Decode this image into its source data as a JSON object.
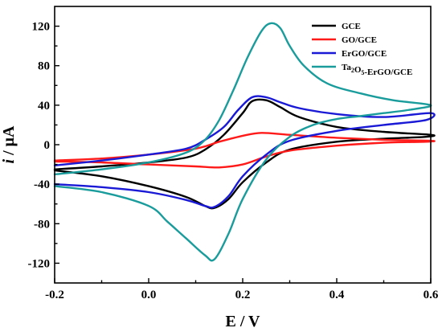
{
  "chart_data": {
    "type": "line",
    "xlabel": "E / V",
    "ylabel_italic": "i",
    "ylabel_rest": " / μA",
    "xlim": [
      -0.2,
      0.6
    ],
    "ylim": [
      -140,
      140
    ],
    "x_ticks": [
      -0.2,
      0.0,
      0.2,
      0.4,
      0.6
    ],
    "x_tick_labels": [
      "-0.2",
      "0.0",
      "0.2",
      "0.4",
      "0.6"
    ],
    "y_ticks": [
      -120,
      -80,
      -40,
      0,
      40,
      80,
      120
    ],
    "y_tick_labels": [
      "-120",
      "-80",
      "-40",
      "0",
      "40",
      "80",
      "120"
    ],
    "grid": false,
    "legend_position": "top-right",
    "series": [
      {
        "name": "GCE",
        "color": "#000000",
        "points": [
          [
            -0.2,
            -25
          ],
          [
            -0.1,
            -22
          ],
          [
            0.0,
            -18
          ],
          [
            0.08,
            -13
          ],
          [
            0.12,
            -5
          ],
          [
            0.16,
            10
          ],
          [
            0.2,
            32
          ],
          [
            0.22,
            44
          ],
          [
            0.25,
            45
          ],
          [
            0.28,
            38
          ],
          [
            0.32,
            28
          ],
          [
            0.4,
            18
          ],
          [
            0.5,
            13
          ],
          [
            0.6,
            10
          ],
          [
            0.59,
            8
          ],
          [
            0.5,
            6
          ],
          [
            0.4,
            3
          ],
          [
            0.3,
            -5
          ],
          [
            0.25,
            -18
          ],
          [
            0.2,
            -38
          ],
          [
            0.17,
            -55
          ],
          [
            0.14,
            -64
          ],
          [
            0.12,
            -62
          ],
          [
            0.08,
            -53
          ],
          [
            0.0,
            -42
          ],
          [
            -0.1,
            -32
          ],
          [
            -0.2,
            -26
          ]
        ]
      },
      {
        "name": "GO/GCE",
        "color": "#ff1a1a",
        "points": [
          [
            -0.2,
            -16
          ],
          [
            -0.1,
            -14
          ],
          [
            0.0,
            -10
          ],
          [
            0.1,
            -4
          ],
          [
            0.15,
            3
          ],
          [
            0.2,
            9
          ],
          [
            0.24,
            12
          ],
          [
            0.3,
            10
          ],
          [
            0.4,
            7
          ],
          [
            0.5,
            5
          ],
          [
            0.6,
            4
          ],
          [
            0.59,
            3
          ],
          [
            0.5,
            2
          ],
          [
            0.4,
            -1
          ],
          [
            0.3,
            -6
          ],
          [
            0.25,
            -12
          ],
          [
            0.2,
            -20
          ],
          [
            0.15,
            -23
          ],
          [
            0.1,
            -22
          ],
          [
            0.0,
            -20
          ],
          [
            -0.1,
            -18
          ],
          [
            -0.2,
            -17
          ]
        ]
      },
      {
        "name": "ErGO/GCE",
        "color": "#1a1ad6",
        "points": [
          [
            -0.2,
            -21
          ],
          [
            -0.1,
            -16
          ],
          [
            0.0,
            -10
          ],
          [
            0.08,
            -4
          ],
          [
            0.12,
            5
          ],
          [
            0.16,
            18
          ],
          [
            0.19,
            35
          ],
          [
            0.22,
            48
          ],
          [
            0.25,
            48
          ],
          [
            0.28,
            43
          ],
          [
            0.32,
            37
          ],
          [
            0.4,
            31
          ],
          [
            0.5,
            28
          ],
          [
            0.6,
            32
          ],
          [
            0.59,
            25
          ],
          [
            0.5,
            20
          ],
          [
            0.4,
            14
          ],
          [
            0.3,
            4
          ],
          [
            0.25,
            -10
          ],
          [
            0.2,
            -32
          ],
          [
            0.17,
            -52
          ],
          [
            0.14,
            -63
          ],
          [
            0.12,
            -62
          ],
          [
            0.08,
            -56
          ],
          [
            0.0,
            -48
          ],
          [
            -0.1,
            -43
          ],
          [
            -0.2,
            -40
          ]
        ]
      },
      {
        "name": "Ta2O5-ErGO/GCE",
        "color": "#1a9c9c",
        "points": [
          [
            -0.2,
            -30
          ],
          [
            -0.1,
            -25
          ],
          [
            0.0,
            -18
          ],
          [
            0.08,
            -8
          ],
          [
            0.12,
            5
          ],
          [
            0.15,
            25
          ],
          [
            0.18,
            55
          ],
          [
            0.21,
            88
          ],
          [
            0.24,
            115
          ],
          [
            0.26,
            123
          ],
          [
            0.28,
            118
          ],
          [
            0.3,
            100
          ],
          [
            0.33,
            80
          ],
          [
            0.38,
            62
          ],
          [
            0.45,
            52
          ],
          [
            0.52,
            45
          ],
          [
            0.6,
            40
          ],
          [
            0.55,
            35
          ],
          [
            0.5,
            32
          ],
          [
            0.45,
            29
          ],
          [
            0.4,
            26
          ],
          [
            0.35,
            20
          ],
          [
            0.3,
            8
          ],
          [
            0.25,
            -15
          ],
          [
            0.2,
            -55
          ],
          [
            0.17,
            -90
          ],
          [
            0.14,
            -116
          ],
          [
            0.12,
            -112
          ],
          [
            0.08,
            -95
          ],
          [
            0.04,
            -78
          ],
          [
            0.0,
            -62
          ],
          [
            -0.1,
            -48
          ],
          [
            -0.2,
            -42
          ]
        ]
      }
    ]
  }
}
